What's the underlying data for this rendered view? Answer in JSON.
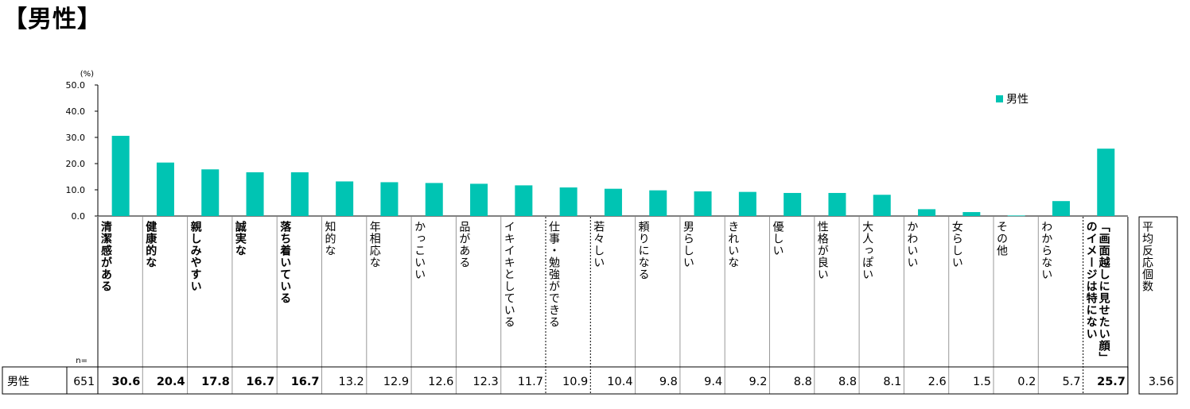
{
  "title": "【男性】",
  "chart_data": {
    "type": "bar",
    "y_unit_label": "(%)",
    "y_ticks": [
      "50.0",
      "40.0",
      "30.0",
      "20.0",
      "10.0",
      "0.0"
    ],
    "ylim": [
      0,
      50
    ],
    "legend": "男性",
    "legend_placement": "top-right",
    "bar_color": "#00c4b3",
    "categories": [
      {
        "label": "清潔感がある",
        "bold": true
      },
      {
        "label": "健康的な",
        "bold": true
      },
      {
        "label": "親しみやすい",
        "bold": true
      },
      {
        "label": "誠実な",
        "bold": true
      },
      {
        "label": "落ち着いている",
        "bold": true
      },
      {
        "label": "知的な",
        "bold": false
      },
      {
        "label": "年相応な",
        "bold": false
      },
      {
        "label": "かっこいい",
        "bold": false
      },
      {
        "label": "品がある",
        "bold": false
      },
      {
        "label": "イキイキとしている",
        "bold": false
      },
      {
        "label": "仕事・勉強ができる",
        "bold": false
      },
      {
        "label": "若々しい",
        "bold": false
      },
      {
        "label": "頼りになる",
        "bold": false
      },
      {
        "label": "男らしい",
        "bold": false
      },
      {
        "label": "きれいな",
        "bold": false
      },
      {
        "label": "優しい",
        "bold": false
      },
      {
        "label": "性格が良い",
        "bold": false
      },
      {
        "label": "大人っぽい",
        "bold": false
      },
      {
        "label": "かわいい",
        "bold": false
      },
      {
        "label": "女らしい",
        "bold": false
      },
      {
        "label": "その他",
        "bold": false
      },
      {
        "label": "わからない",
        "bold": false
      },
      {
        "label": "「画面越しに見せたい顔」のイメージは特にない",
        "bold": true
      }
    ],
    "series": [
      {
        "name": "男性",
        "values": [
          30.6,
          20.4,
          17.8,
          16.7,
          16.7,
          13.2,
          12.9,
          12.6,
          12.3,
          11.7,
          10.9,
          10.4,
          9.8,
          9.4,
          9.2,
          8.8,
          8.8,
          8.1,
          2.6,
          1.5,
          0.2,
          5.7,
          25.7
        ]
      }
    ],
    "table": {
      "n_label": "n=",
      "row_label": "男性",
      "n_value": "651",
      "values_text": [
        "30.6",
        "20.4",
        "17.8",
        "16.7",
        "16.7",
        "13.2",
        "12.9",
        "12.6",
        "12.3",
        "11.7",
        "10.9",
        "10.4",
        "9.8",
        "9.4",
        "9.2",
        "8.8",
        "8.8",
        "8.1",
        "2.6",
        "1.5",
        "0.2",
        "5.7",
        "25.7"
      ],
      "extra_header": "平均反応個数",
      "extra_value": "3.56"
    }
  }
}
